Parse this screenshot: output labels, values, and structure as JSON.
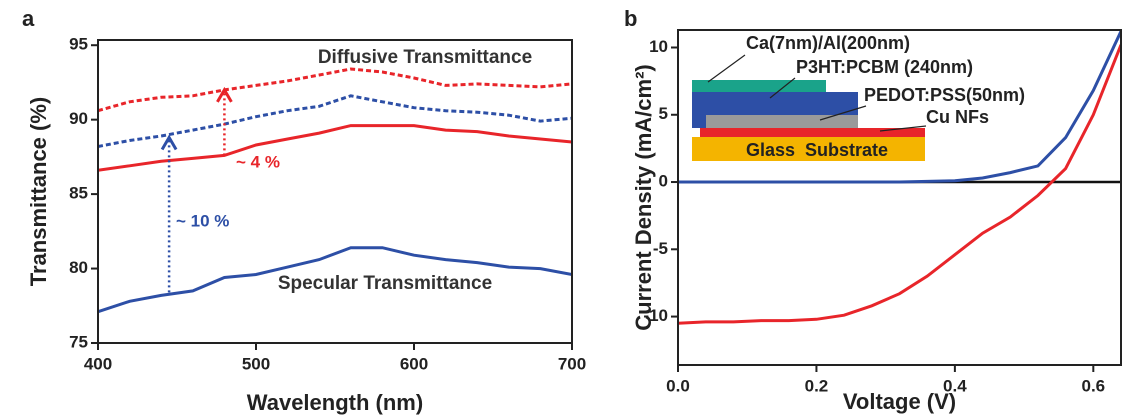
{
  "chart_data": [
    {
      "type": "line",
      "panel": "a",
      "x_label": "Wavelength (nm)",
      "y_label": "Transmittance (%)",
      "x": [
        400,
        420,
        440,
        460,
        480,
        500,
        520,
        540,
        560,
        580,
        600,
        620,
        640,
        660,
        680,
        700
      ],
      "series": [
        {
          "color": "#e8252a",
          "dash": true,
          "values": [
            90.6,
            91.2,
            91.5,
            91.6,
            92.0,
            92.3,
            92.6,
            93.0,
            93.4,
            93.2,
            92.8,
            92.3,
            92.4,
            92.3,
            92.2,
            92.4
          ]
        },
        {
          "color": "#2d4fa6",
          "dash": true,
          "values": [
            88.2,
            88.6,
            88.9,
            89.3,
            89.7,
            90.2,
            90.6,
            90.9,
            91.6,
            91.2,
            90.8,
            90.6,
            90.5,
            90.3,
            89.9,
            90.1
          ]
        },
        {
          "color": "#e8252a",
          "dash": false,
          "values": [
            86.6,
            86.9,
            87.2,
            87.4,
            87.6,
            88.3,
            88.7,
            89.1,
            89.6,
            89.6,
            89.6,
            89.3,
            89.2,
            88.9,
            88.7,
            88.5
          ]
        },
        {
          "color": "#2d4fa6",
          "dash": false,
          "values": [
            77.1,
            77.8,
            78.2,
            78.5,
            79.4,
            79.6,
            80.1,
            80.6,
            81.4,
            81.4,
            80.9,
            80.6,
            80.4,
            80.1,
            80.0,
            79.6
          ]
        }
      ],
      "xlim": [
        400,
        700
      ],
      "ylim": [
        75,
        95.35
      ],
      "xticks": [
        400,
        500,
        600,
        700
      ],
      "yticks": [
        75,
        80,
        85,
        90,
        95
      ],
      "annotations": [
        "Diffusive Transmittance",
        "Specular Transmittance"
      ],
      "arrows": [
        {
          "x": 445,
          "from": 78.4,
          "to": 88.8,
          "color": "#2d4fa6",
          "label": "~ 10 %"
        },
        {
          "x": 480,
          "from": 87.6,
          "to": 92.0,
          "color": "#e8252a",
          "label": "~ 4 %"
        }
      ]
    },
    {
      "type": "line",
      "panel": "b",
      "x_label": "Voltage (V)",
      "y_label": "Current Density (mA/cm²)",
      "x": [
        0,
        0.04,
        0.08,
        0.12,
        0.16,
        0.2,
        0.24,
        0.28,
        0.32,
        0.36,
        0.4,
        0.44,
        0.48,
        0.52,
        0.56,
        0.6,
        0.64
      ],
      "series": [
        {
          "color": "#2d4fa6",
          "dash": false,
          "values": [
            0,
            0,
            0,
            0,
            0,
            0,
            0,
            0,
            0,
            0.05,
            0.1,
            0.3,
            0.7,
            1.2,
            3.3,
            6.8,
            11.2
          ]
        },
        {
          "color": "#e8252a",
          "dash": false,
          "values": [
            -10.5,
            -10.4,
            -10.4,
            -10.3,
            -10.3,
            -10.2,
            -9.9,
            -9.2,
            -8.3,
            -7.0,
            -5.4,
            -3.8,
            -2.6,
            -1.0,
            1.0,
            5.0,
            10.2
          ]
        }
      ],
      "xlim": [
        0,
        0.64
      ],
      "ylim": [
        -13.6,
        11.3
      ],
      "xticks": [
        {
          "value": 0,
          "label": "0.0"
        },
        0.2,
        0.4,
        0.6
      ],
      "yticks": [
        -10,
        -5,
        0,
        5,
        10
      ],
      "hline": 0,
      "inset_labels": [
        "Ca(7nm)/Al(200nm)",
        "P3HT:PCBM (240nm)",
        "PEDOT:PSS(50nm)",
        "Cu NFs",
        "Glass  Substrate"
      ]
    }
  ]
}
